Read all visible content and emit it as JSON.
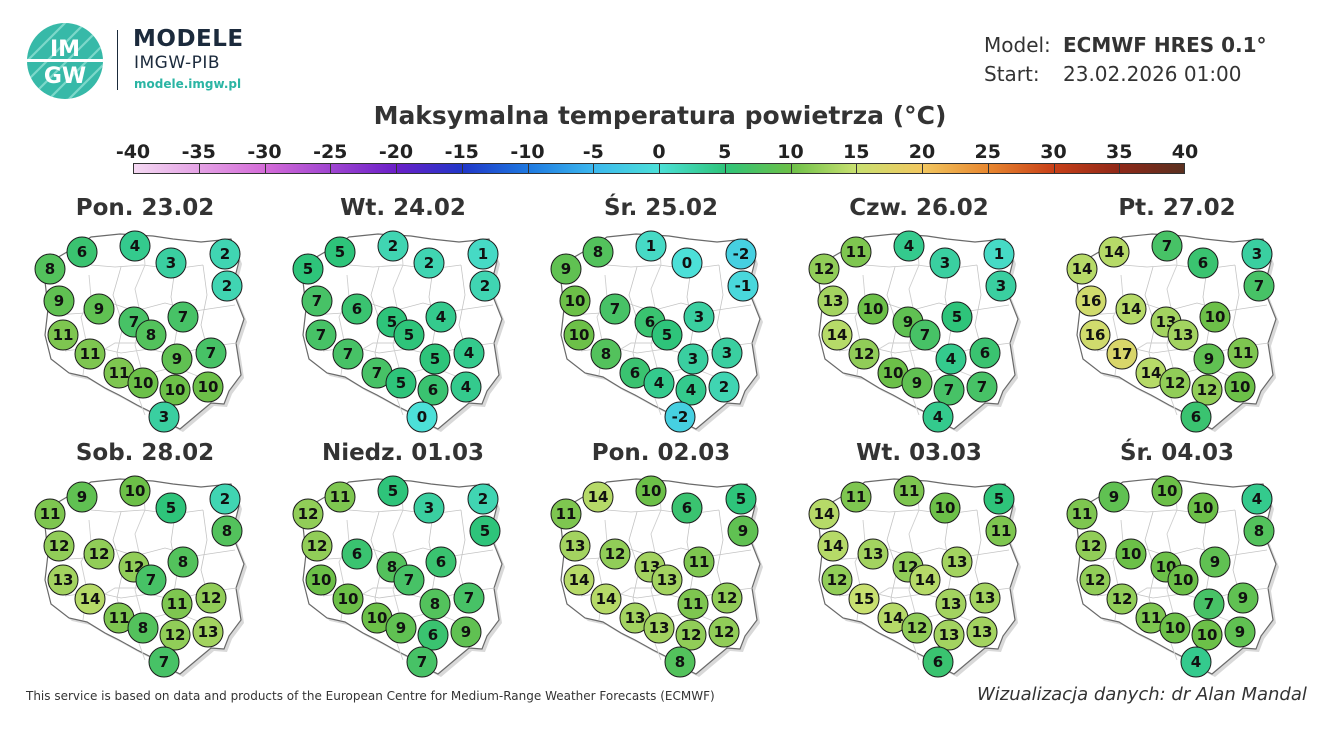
{
  "header": {
    "logo_text_top": "IM",
    "logo_text_bottom": "GW",
    "brand_title": "MODELE",
    "brand_subtitle": "IMGW-PIB",
    "brand_url": "modele.imgw.pl",
    "model_label": "Model:",
    "model_value": "ECMWF HRES 0.1°",
    "start_label": "Start:",
    "start_value": "23.02.2026 01:00",
    "title": "Maksymalna temperatura powietrza (°C)"
  },
  "colorbar": {
    "ticks": [
      "-40",
      "-35",
      "-30",
      "-25",
      "-20",
      "-15",
      "-10",
      "-5",
      "0",
      "5",
      "10",
      "15",
      "20",
      "25",
      "30",
      "35",
      "40"
    ],
    "range": [
      -40,
      40
    ],
    "stops": [
      {
        "t": -40,
        "color": "#f4d8f2"
      },
      {
        "t": -30,
        "color": "#d46bd8"
      },
      {
        "t": -20,
        "color": "#6a1fc8"
      },
      {
        "t": -15,
        "color": "#2036c8"
      },
      {
        "t": -10,
        "color": "#1e78e0"
      },
      {
        "t": -5,
        "color": "#3cb8ee"
      },
      {
        "t": 0,
        "color": "#4ce0d8"
      },
      {
        "t": 5,
        "color": "#2ec47a"
      },
      {
        "t": 10,
        "color": "#6cc048"
      },
      {
        "t": 15,
        "color": "#c8e070"
      },
      {
        "t": 20,
        "color": "#f2c860"
      },
      {
        "t": 25,
        "color": "#e88830"
      },
      {
        "t": 30,
        "color": "#c84018"
      },
      {
        "t": 35,
        "color": "#902818"
      },
      {
        "t": 40,
        "color": "#5a3020"
      }
    ]
  },
  "panels": [
    {
      "date": "Pon. 23.02",
      "values": [
        6,
        4,
        2,
        8,
        3,
        2,
        9,
        9,
        7,
        7,
        11,
        8,
        11,
        7,
        9,
        11,
        10,
        10,
        10,
        3
      ]
    },
    {
      "date": "Wt. 24.02",
      "values": [
        5,
        2,
        1,
        5,
        2,
        2,
        7,
        6,
        5,
        4,
        7,
        5,
        7,
        4,
        5,
        7,
        5,
        6,
        4,
        0
      ]
    },
    {
      "date": "Śr. 25.02",
      "values": [
        8,
        1,
        -2,
        9,
        0,
        -1,
        10,
        7,
        6,
        3,
        10,
        5,
        8,
        3,
        3,
        6,
        4,
        4,
        2,
        -2
      ]
    },
    {
      "date": "Czw. 26.02",
      "values": [
        11,
        4,
        1,
        12,
        3,
        3,
        13,
        10,
        9,
        5,
        14,
        7,
        12,
        6,
        4,
        10,
        9,
        7,
        7,
        4
      ]
    },
    {
      "date": "Pt. 27.02",
      "values": [
        14,
        7,
        3,
        14,
        6,
        7,
        16,
        14,
        13,
        10,
        16,
        13,
        17,
        11,
        9,
        14,
        12,
        12,
        10,
        6
      ]
    },
    {
      "date": "Sob. 28.02",
      "values": [
        9,
        10,
        2,
        11,
        5,
        8,
        12,
        12,
        12,
        8,
        13,
        7,
        14,
        12,
        11,
        11,
        8,
        12,
        13,
        7
      ]
    },
    {
      "date": "Niedz. 01.03",
      "values": [
        11,
        5,
        2,
        12,
        3,
        5,
        12,
        6,
        8,
        6,
        10,
        7,
        10,
        7,
        8,
        10,
        9,
        6,
        9,
        7
      ]
    },
    {
      "date": "Pon. 02.03",
      "values": [
        14,
        10,
        5,
        11,
        6,
        9,
        13,
        12,
        13,
        11,
        14,
        13,
        14,
        12,
        11,
        13,
        13,
        12,
        12,
        8
      ]
    },
    {
      "date": "Wt. 03.03",
      "values": [
        11,
        11,
        5,
        14,
        10,
        11,
        14,
        13,
        12,
        13,
        12,
        14,
        15,
        13,
        13,
        14,
        12,
        13,
        13,
        6
      ]
    },
    {
      "date": "Śr. 04.03",
      "values": [
        9,
        10,
        4,
        11,
        10,
        8,
        12,
        10,
        10,
        9,
        12,
        10,
        12,
        9,
        7,
        11,
        10,
        10,
        9,
        4
      ]
    }
  ],
  "footer": {
    "source_note": "This service is based on data and products of the European Centre for Medium-Range Weather Forecasts (ECMWF)",
    "credit": "Wizualizacja danych: dr Alan Mandal"
  }
}
